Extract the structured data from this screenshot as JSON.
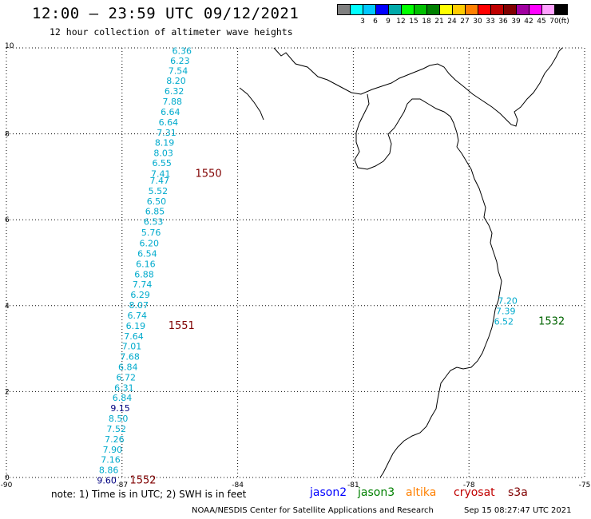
{
  "header": {
    "title": "12:00 – 23:59 UTC 09/12/2021",
    "subtitle": "12 hour collection of altimeter wave heights"
  },
  "color_scale": {
    "unit_label": "(ft)",
    "bins": [
      {
        "label": "",
        "color": "#808080"
      },
      {
        "label": "3",
        "color": "#00ffff"
      },
      {
        "label": "6",
        "color": "#00c8ff"
      },
      {
        "label": "9",
        "color": "#0000ff"
      },
      {
        "label": "12",
        "color": "#00aaaa"
      },
      {
        "label": "15",
        "color": "#00ff00"
      },
      {
        "label": "18",
        "color": "#00c000"
      },
      {
        "label": "21",
        "color": "#008000"
      },
      {
        "label": "24",
        "color": "#ffff00"
      },
      {
        "label": "27",
        "color": "#ffcc00"
      },
      {
        "label": "30",
        "color": "#ff8000"
      },
      {
        "label": "33",
        "color": "#ff0000"
      },
      {
        "label": "36",
        "color": "#c00000"
      },
      {
        "label": "39",
        "color": "#800000"
      },
      {
        "label": "42",
        "color": "#a000a0"
      },
      {
        "label": "45",
        "color": "#ff00ff"
      },
      {
        "label": "70",
        "color": "#ffa0ff"
      },
      {
        "label": "",
        "color": "#000000"
      }
    ]
  },
  "axes": {
    "lon_ticks": [
      -90,
      -87,
      -84,
      -81,
      -78,
      -75
    ],
    "lon_labels": [
      "-90",
      "-87",
      "-84",
      "-81",
      "-78",
      "-75"
    ],
    "lat_ticks": [
      0,
      2,
      4,
      6,
      8,
      10
    ],
    "lat_labels": [
      "0",
      "2",
      "4",
      "6",
      "8",
      "10"
    ]
  },
  "tracks": [
    {
      "id": "track-1550-1551-1552",
      "label_color": "#00aacc",
      "points": [
        {
          "lat": 9.86,
          "lon": -85.7,
          "value": "6.36"
        },
        {
          "lat": 9.63,
          "lon": -85.75,
          "value": "6.23"
        },
        {
          "lat": 9.4,
          "lon": -85.8,
          "value": "7.54"
        },
        {
          "lat": 9.16,
          "lon": -85.85,
          "value": "8.20"
        },
        {
          "lat": 8.92,
          "lon": -85.9,
          "value": "6.32"
        },
        {
          "lat": 8.68,
          "lon": -85.95,
          "value": "7.88"
        },
        {
          "lat": 8.44,
          "lon": -86.0,
          "value": "6.64"
        },
        {
          "lat": 8.2,
          "lon": -86.05,
          "value": "6.64"
        },
        {
          "lat": 7.96,
          "lon": -86.1,
          "value": "7.31"
        },
        {
          "lat": 7.72,
          "lon": -86.15,
          "value": "8.19"
        },
        {
          "lat": 7.48,
          "lon": -86.18,
          "value": "8.03"
        },
        {
          "lat": 7.25,
          "lon": -86.22,
          "value": "6.55"
        },
        {
          "lat": 7.0,
          "lon": -86.25,
          "value": "7.41"
        },
        {
          "lat": 6.84,
          "lon": -86.28,
          "value": "7.47"
        },
        {
          "lat": 6.6,
          "lon": -86.32,
          "value": "5.52"
        },
        {
          "lat": 6.36,
          "lon": -86.36,
          "value": "6.50"
        },
        {
          "lat": 6.12,
          "lon": -86.4,
          "value": "6.85"
        },
        {
          "lat": 5.88,
          "lon": -86.44,
          "value": "6.53"
        },
        {
          "lat": 5.63,
          "lon": -86.5,
          "value": "5.76"
        },
        {
          "lat": 5.38,
          "lon": -86.55,
          "value": "6.20"
        },
        {
          "lat": 5.14,
          "lon": -86.6,
          "value": "6.54"
        },
        {
          "lat": 4.9,
          "lon": -86.64,
          "value": "6.16"
        },
        {
          "lat": 4.66,
          "lon": -86.68,
          "value": "6.88"
        },
        {
          "lat": 4.42,
          "lon": -86.73,
          "value": "7.74"
        },
        {
          "lat": 4.18,
          "lon": -86.78,
          "value": "6.29"
        },
        {
          "lat": 3.94,
          "lon": -86.82,
          "value": "8.07"
        },
        {
          "lat": 3.7,
          "lon": -86.86,
          "value": "6.74"
        },
        {
          "lat": 3.46,
          "lon": -86.9,
          "value": "6.19"
        },
        {
          "lat": 3.22,
          "lon": -86.95,
          "value": "7.64"
        },
        {
          "lat": 2.98,
          "lon": -87.0,
          "value": "7.01"
        },
        {
          "lat": 2.74,
          "lon": -87.05,
          "value": "7.68"
        },
        {
          "lat": 2.5,
          "lon": -87.1,
          "value": "6.84"
        },
        {
          "lat": 2.26,
          "lon": -87.15,
          "value": "6.72"
        },
        {
          "lat": 2.02,
          "lon": -87.2,
          "value": "6.31"
        },
        {
          "lat": 1.78,
          "lon": -87.25,
          "value": "6.84"
        },
        {
          "lat": 1.54,
          "lon": -87.3,
          "value": "9.15"
        },
        {
          "lat": 1.3,
          "lon": -87.35,
          "value": "8.50"
        },
        {
          "lat": 1.06,
          "lon": -87.4,
          "value": "7.52"
        },
        {
          "lat": 0.82,
          "lon": -87.45,
          "value": "7.26"
        },
        {
          "lat": 0.58,
          "lon": -87.5,
          "value": "7.90"
        },
        {
          "lat": 0.34,
          "lon": -87.55,
          "value": "7.16"
        },
        {
          "lat": 0.1,
          "lon": -87.6,
          "value": "8.86"
        },
        {
          "lat": -0.14,
          "lon": -87.65,
          "value": "9.60"
        }
      ]
    },
    {
      "id": "track-1532",
      "label_color": "#00aacc",
      "points": [
        {
          "lat": 4.04,
          "lon": -77.25,
          "value": "7.20"
        },
        {
          "lat": 3.8,
          "lon": -77.3,
          "value": "7.39"
        },
        {
          "lat": 3.56,
          "lon": -77.35,
          "value": "6.52"
        }
      ]
    }
  ],
  "time_labels": [
    {
      "text": "1550",
      "lat": 7.0,
      "lon": -85.1,
      "color": "#800000"
    },
    {
      "text": "1551",
      "lat": 3.46,
      "lon": -85.8,
      "color": "#800000"
    },
    {
      "text": "1552",
      "lat": -0.14,
      "lon": -86.8,
      "color": "#800000"
    },
    {
      "text": "1532",
      "lat": 3.56,
      "lon": -76.2,
      "color": "#006400"
    }
  ],
  "footer": {
    "note": "note:  1) Time is in UTC;  2) SWH is in feet",
    "satellites": [
      {
        "name": "jason2",
        "color": "#0000ff"
      },
      {
        "name": "jason3",
        "color": "#008000"
      },
      {
        "name": "altika",
        "color": "#ff8000"
      },
      {
        "name": "cryosat",
        "color": "#c00000"
      },
      {
        "name": "s3a",
        "color": "#800000"
      }
    ],
    "credit": "NOAA/NESDIS Center for Satellite Applications and Research",
    "generated": "Sep 15 08:27:47 UTC 2021"
  }
}
